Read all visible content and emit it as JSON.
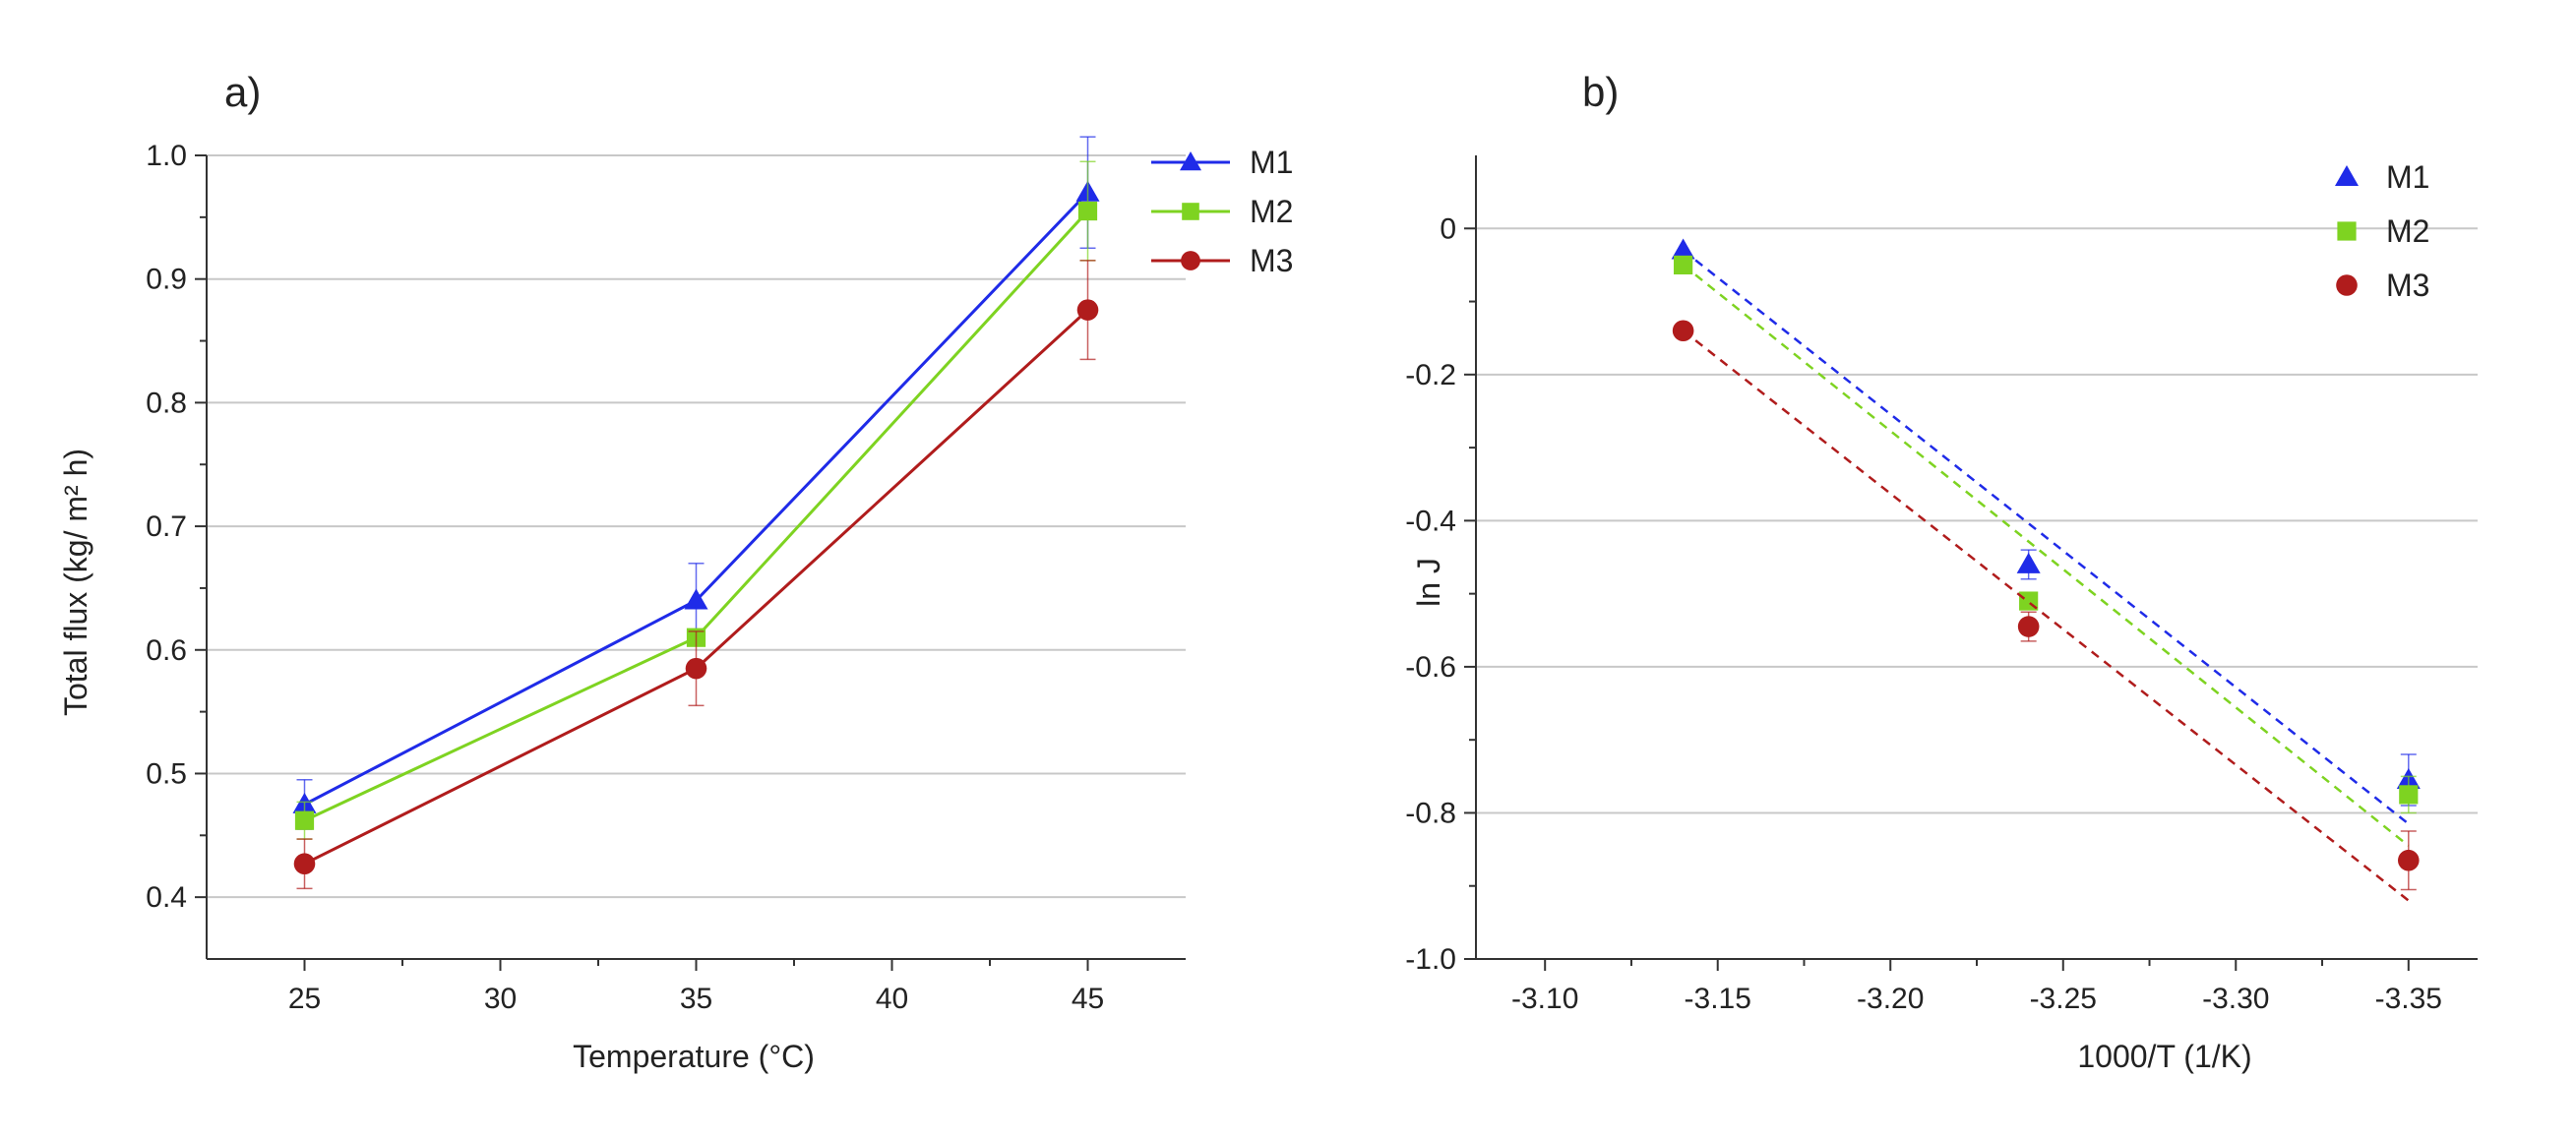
{
  "colors": {
    "M1": "#1f2be8",
    "M2": "#7ed321",
    "M3": "#b01c1c",
    "grid": "#c8c8c8",
    "axis": "#333333"
  },
  "chart_data": [
    {
      "panel": "a)",
      "type": "line",
      "xlabel": "Temperature (°C)",
      "ylabel": "Total flux (kg/ m² h)",
      "xlim": [
        22.5,
        47.5
      ],
      "ylim": [
        0.35,
        1.0
      ],
      "xticks": [
        25,
        30,
        35,
        40,
        45
      ],
      "yticks": [
        0.4,
        0.5,
        0.6,
        0.7,
        0.8,
        0.9,
        1.0
      ],
      "xtick_labels": [
        "25",
        "30",
        "35",
        "40",
        "45"
      ],
      "ytick_labels": [
        "0.4",
        "0.5",
        "0.6",
        "0.7",
        "0.8",
        "0.9",
        "1.0"
      ],
      "legend_position": "top-right",
      "series": [
        {
          "name": "M1",
          "marker": "triangle",
          "x": [
            25,
            35,
            45
          ],
          "y": [
            0.475,
            0.64,
            0.97
          ],
          "err": [
            0.02,
            0.03,
            0.045
          ]
        },
        {
          "name": "M2",
          "marker": "square",
          "x": [
            25,
            35,
            45
          ],
          "y": [
            0.462,
            0.61,
            0.955
          ],
          "err": [
            0.015,
            0.0,
            0.04
          ]
        },
        {
          "name": "M3",
          "marker": "circle",
          "x": [
            25,
            35,
            45
          ],
          "y": [
            0.427,
            0.585,
            0.875
          ],
          "err": [
            0.02,
            0.03,
            0.04
          ]
        }
      ]
    },
    {
      "panel": "b)",
      "type": "scatter",
      "xlabel": "1000/T (1/K)",
      "ylabel": "ln J",
      "xlim": [
        -3.08,
        -3.37
      ],
      "ylim": [
        -1.0,
        0.1
      ],
      "xticks": [
        -3.1,
        -3.15,
        -3.2,
        -3.25,
        -3.3,
        -3.35
      ],
      "yticks": [
        0,
        -0.2,
        -0.4,
        -0.6,
        -0.8,
        -1.0
      ],
      "xtick_labels": [
        "-3.10",
        "-3.15",
        "-3.20",
        "-3.25",
        "-3.30",
        "-3.35"
      ],
      "ytick_labels": [
        "0",
        "-0.2",
        "-0.4",
        "-0.6",
        "-0.8",
        "-1.0"
      ],
      "legend_position": "top-right",
      "series": [
        {
          "name": "M1",
          "marker": "triangle",
          "x": [
            -3.14,
            -3.24,
            -3.35
          ],
          "y": [
            -0.03,
            -0.46,
            -0.755
          ],
          "err": [
            0.0,
            0.02,
            0.035
          ],
          "fit": [
            [
              -3.14,
              -0.03
            ],
            [
              -3.35,
              -0.815
            ]
          ]
        },
        {
          "name": "M2",
          "marker": "square",
          "x": [
            -3.14,
            -3.24,
            -3.35
          ],
          "y": [
            -0.05,
            -0.51,
            -0.775
          ],
          "err": [
            0.0,
            0.0,
            0.025
          ],
          "fit": [
            [
              -3.14,
              -0.05
            ],
            [
              -3.35,
              -0.845
            ]
          ]
        },
        {
          "name": "M3",
          "marker": "circle",
          "x": [
            -3.14,
            -3.24,
            -3.35
          ],
          "y": [
            -0.14,
            -0.545,
            -0.865
          ],
          "err": [
            0.0,
            0.02,
            0.04
          ],
          "fit": [
            [
              -3.14,
              -0.14
            ],
            [
              -3.35,
              -0.92
            ]
          ]
        }
      ]
    }
  ]
}
